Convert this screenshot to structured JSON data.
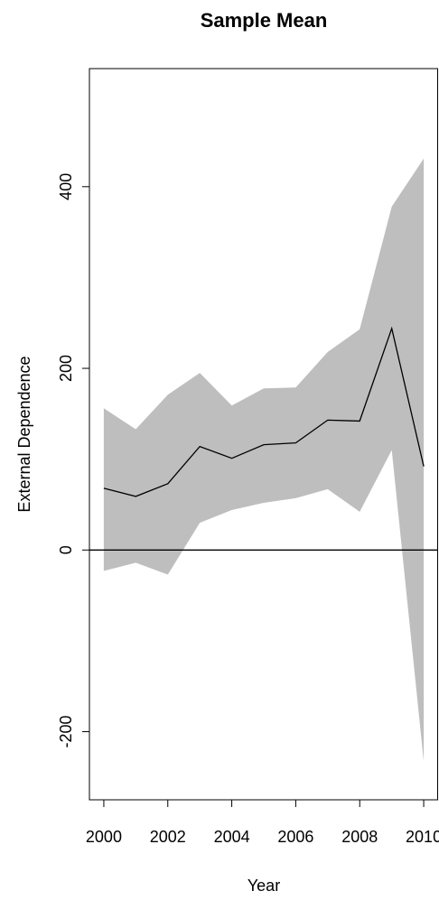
{
  "chart_data": {
    "type": "area",
    "title": "Sample Mean",
    "xlabel": "Year",
    "ylabel": "External Dependence",
    "xlim": [
      1999.55,
      2010.45
    ],
    "ylim": [
      -275,
      530
    ],
    "x_ticks": [
      2000,
      2002,
      2004,
      2006,
      2008,
      2010
    ],
    "y_ticks": [
      -200,
      0,
      200,
      400
    ],
    "x": [
      2000,
      2001,
      2002,
      2003,
      2004,
      2005,
      2006,
      2007,
      2008,
      2009,
      2010
    ],
    "series": [
      {
        "role": "mean",
        "values": [
          68,
          59,
          73,
          114,
          101,
          116,
          118,
          143,
          142,
          244,
          92
        ]
      },
      {
        "role": "upper",
        "values": [
          156,
          133,
          171,
          195,
          159,
          178,
          179,
          218,
          243,
          378,
          431
        ]
      },
      {
        "role": "lower",
        "values": [
          -23,
          -14,
          -27,
          30,
          44,
          52,
          57,
          67,
          42,
          110,
          -233
        ]
      }
    ],
    "reference_line": 0,
    "colors": {
      "band": "#bebebe",
      "line": "#000000",
      "axis": "#000000"
    },
    "grid": false,
    "legend": "none"
  }
}
